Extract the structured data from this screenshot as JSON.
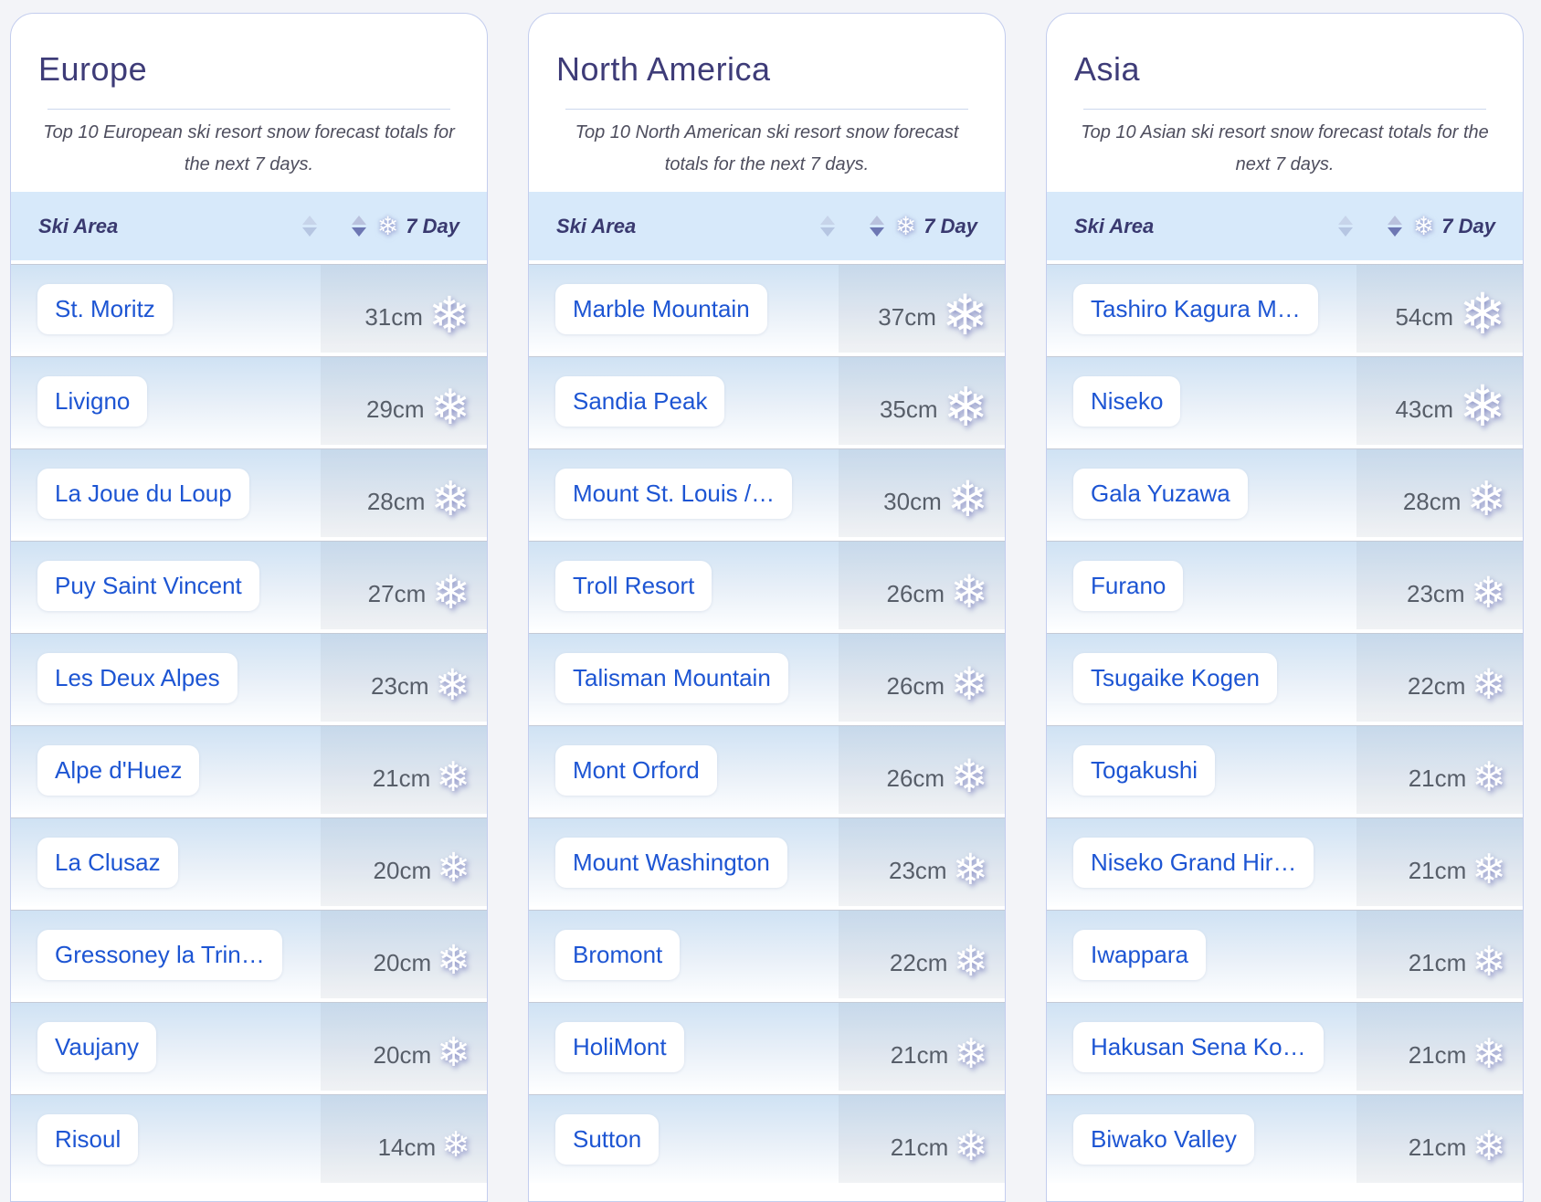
{
  "icons": {
    "snowflake": "❄",
    "sort_inactive": "sort-diamond-icon",
    "sort_active": "sort-descending-icon"
  },
  "colors": {
    "page_background": "#f3f4f8",
    "card_border": "#c3cdee",
    "title_text": "#3e3c78",
    "table_header_background": "#d7e9fa",
    "link_blue": "#1d55d3",
    "value_text": "#575e69",
    "row_gradient_top": "#cfe2f4",
    "row_gradient_bottom": "#fdfeff",
    "active_sort_arrow": "#6d77b3"
  },
  "table_header": {
    "ski_area": "Ski Area",
    "seven_day": "7 Day"
  },
  "columns": [
    {
      "title": "Europe",
      "subtitle": "Top 10 European ski resort snow forecast totals for the next 7 days.",
      "rows": [
        {
          "name": "St. Moritz",
          "value": "31cm",
          "cm": 31
        },
        {
          "name": "Livigno",
          "value": "29cm",
          "cm": 29
        },
        {
          "name": "La Joue du Loup",
          "value": "28cm",
          "cm": 28
        },
        {
          "name": "Puy Saint Vincent",
          "value": "27cm",
          "cm": 27
        },
        {
          "name": "Les Deux Alpes",
          "value": "23cm",
          "cm": 23
        },
        {
          "name": "Alpe d'Huez",
          "value": "21cm",
          "cm": 21
        },
        {
          "name": "La Clusaz",
          "value": "20cm",
          "cm": 20
        },
        {
          "name": "Gressoney la Trin…",
          "value": "20cm",
          "cm": 20
        },
        {
          "name": "Vaujany",
          "value": "20cm",
          "cm": 20
        },
        {
          "name": "Risoul",
          "value": "14cm",
          "cm": 14
        }
      ]
    },
    {
      "title": "North America",
      "subtitle": "Top 10 North American ski resort snow forecast totals for the next 7 days.",
      "rows": [
        {
          "name": "Marble Mountain",
          "value": "37cm",
          "cm": 37
        },
        {
          "name": "Sandia Peak",
          "value": "35cm",
          "cm": 35
        },
        {
          "name": "Mount St. Louis /…",
          "value": "30cm",
          "cm": 30
        },
        {
          "name": "Troll Resort",
          "value": "26cm",
          "cm": 26
        },
        {
          "name": "Talisman Mountain",
          "value": "26cm",
          "cm": 26
        },
        {
          "name": "Mont Orford",
          "value": "26cm",
          "cm": 26
        },
        {
          "name": "Mount Washington",
          "value": "23cm",
          "cm": 23
        },
        {
          "name": "Bromont",
          "value": "22cm",
          "cm": 22
        },
        {
          "name": "HoliMont",
          "value": "21cm",
          "cm": 21
        },
        {
          "name": "Sutton",
          "value": "21cm",
          "cm": 21
        }
      ]
    },
    {
      "title": "Asia",
      "subtitle": "Top 10 Asian ski resort snow forecast totals for the next 7 days.",
      "rows": [
        {
          "name": "Tashiro Kagura M…",
          "value": "54cm",
          "cm": 54
        },
        {
          "name": "Niseko",
          "value": "43cm",
          "cm": 43
        },
        {
          "name": "Gala Yuzawa",
          "value": "28cm",
          "cm": 28
        },
        {
          "name": "Furano",
          "value": "23cm",
          "cm": 23
        },
        {
          "name": "Tsugaike Kogen",
          "value": "22cm",
          "cm": 22
        },
        {
          "name": "Togakushi",
          "value": "21cm",
          "cm": 21
        },
        {
          "name": "Niseko Grand Hir…",
          "value": "21cm",
          "cm": 21
        },
        {
          "name": "Iwappara",
          "value": "21cm",
          "cm": 21
        },
        {
          "name": "Hakusan Sena Ko…",
          "value": "21cm",
          "cm": 21
        },
        {
          "name": "Biwako Valley",
          "value": "21cm",
          "cm": 21
        }
      ]
    }
  ]
}
